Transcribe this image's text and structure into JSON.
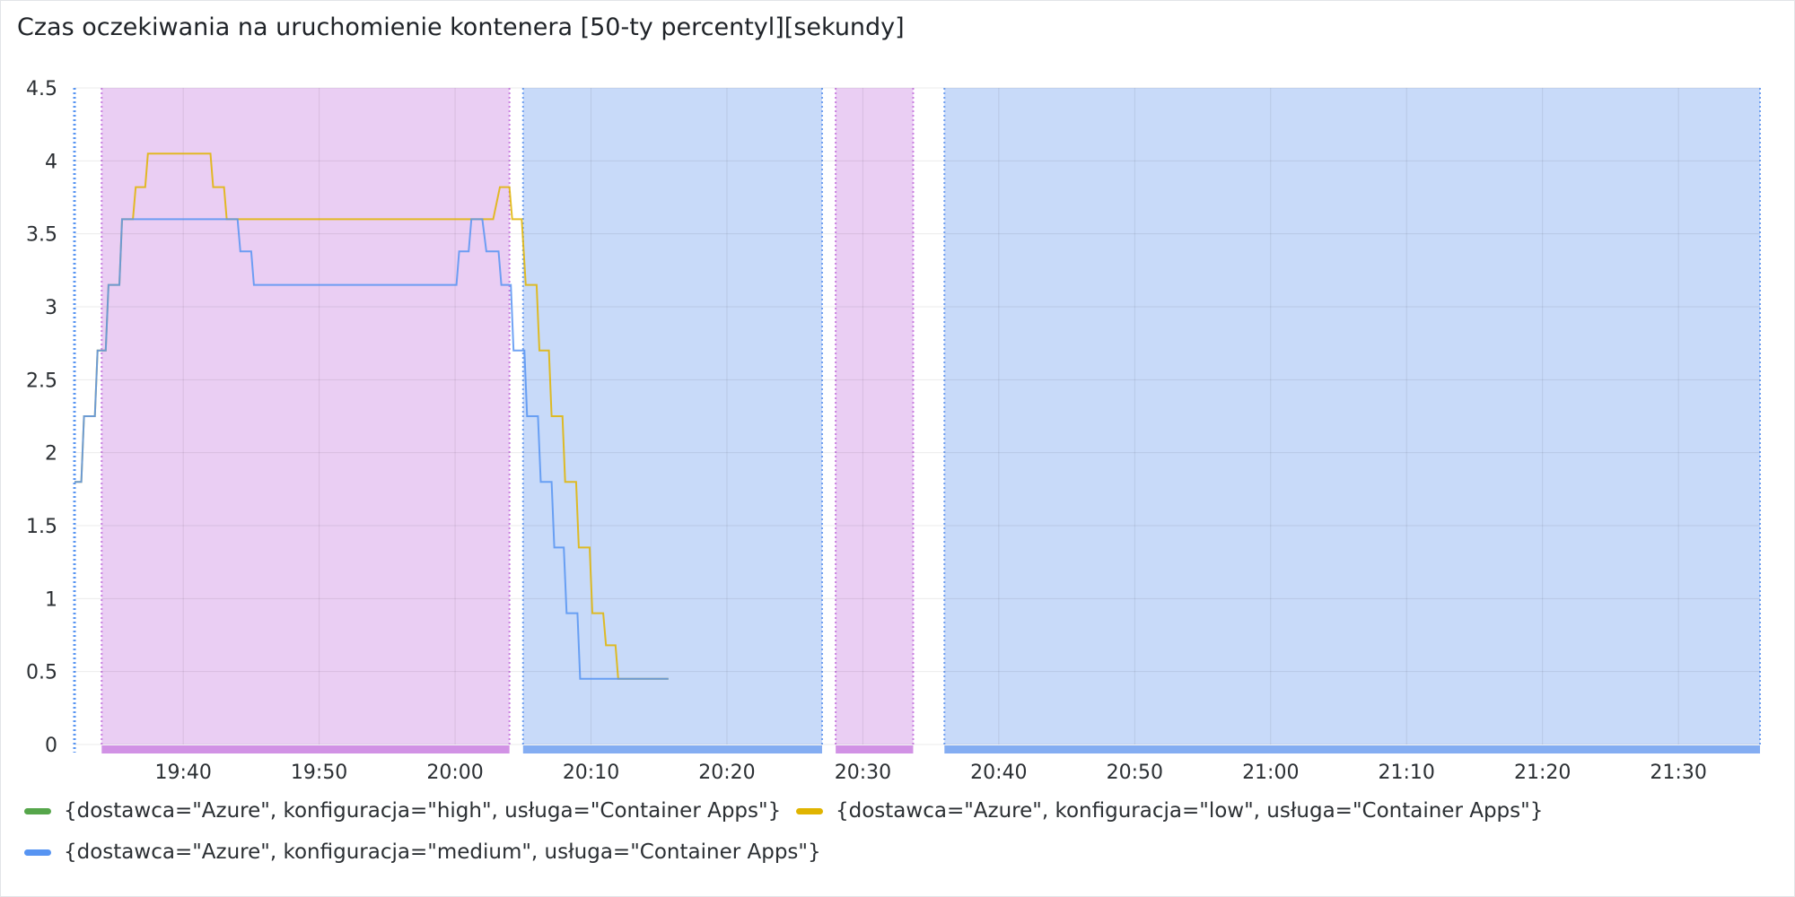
{
  "chart_data": {
    "type": "line",
    "title": "Czas oczekiwania na uruchomienie kontenera [50-ty percentyl][sekundy]",
    "ylim": [
      0,
      4.5
    ],
    "yticks": [
      "0",
      "0.5",
      "1",
      "1.5",
      "2",
      "2.5",
      "3",
      "3.5",
      "4",
      "4.5"
    ],
    "xlim_minutes": [
      1172,
      1296
    ],
    "xticks": [
      {
        "label": "19:40",
        "minute": 1180
      },
      {
        "label": "19:50",
        "minute": 1190
      },
      {
        "label": "20:00",
        "minute": 1200
      },
      {
        "label": "20:10",
        "minute": 1210
      },
      {
        "label": "20:20",
        "minute": 1220
      },
      {
        "label": "20:30",
        "minute": 1230
      },
      {
        "label": "20:40",
        "minute": 1240
      },
      {
        "label": "20:50",
        "minute": 1250
      },
      {
        "label": "21:00",
        "minute": 1260
      },
      {
        "label": "21:10",
        "minute": 1270
      },
      {
        "label": "21:20",
        "minute": 1280
      },
      {
        "label": "21:30",
        "minute": 1290
      }
    ],
    "regions": [
      {
        "start": 1174.0,
        "end": 1204.0,
        "color": "#c97fe0"
      },
      {
        "start": 1205.0,
        "end": 1227.0,
        "color": "#6f9ff0"
      },
      {
        "start": 1228.0,
        "end": 1233.7,
        "color": "#c97fe0"
      },
      {
        "start": 1236.0,
        "end": 1296.0,
        "color": "#6f9ff0"
      }
    ],
    "start_marker": 1172.0,
    "series": [
      {
        "name": "{dostawca=\"Azure\", konfiguracja=\"high\", usługa=\"Container Apps\"}",
        "color": "#56a64b",
        "points": []
      },
      {
        "name": "{dostawca=\"Azure\", konfiguracja=\"low\", usługa=\"Container Apps\"}",
        "color": "#e0b400",
        "points": [
          [
            1172.0,
            1.8
          ],
          [
            1172.5,
            1.8
          ],
          [
            1172.7,
            2.25
          ],
          [
            1173.5,
            2.25
          ],
          [
            1173.7,
            2.7
          ],
          [
            1174.3,
            2.7
          ],
          [
            1174.5,
            3.15
          ],
          [
            1175.3,
            3.15
          ],
          [
            1175.5,
            3.6
          ],
          [
            1176.3,
            3.6
          ],
          [
            1176.5,
            3.82
          ],
          [
            1177.2,
            3.82
          ],
          [
            1177.4,
            4.05
          ],
          [
            1182.0,
            4.05
          ],
          [
            1182.2,
            3.82
          ],
          [
            1183.0,
            3.82
          ],
          [
            1183.2,
            3.6
          ],
          [
            1202.8,
            3.6
          ],
          [
            1203.3,
            3.82
          ],
          [
            1204.0,
            3.82
          ],
          [
            1204.2,
            3.6
          ],
          [
            1204.9,
            3.6
          ],
          [
            1205.2,
            3.15
          ],
          [
            1206.0,
            3.15
          ],
          [
            1206.2,
            2.7
          ],
          [
            1206.9,
            2.7
          ],
          [
            1207.1,
            2.25
          ],
          [
            1207.9,
            2.25
          ],
          [
            1208.1,
            1.8
          ],
          [
            1208.9,
            1.8
          ],
          [
            1209.1,
            1.35
          ],
          [
            1209.9,
            1.35
          ],
          [
            1210.1,
            0.9
          ],
          [
            1210.9,
            0.9
          ],
          [
            1211.1,
            0.68
          ],
          [
            1211.8,
            0.68
          ],
          [
            1212.0,
            0.45
          ],
          [
            1215.7,
            0.45
          ]
        ]
      },
      {
        "name": "{dostawca=\"Azure\", konfiguracja=\"medium\", usługa=\"Container Apps\"}",
        "color": "#5794f2",
        "points": [
          [
            1172.0,
            1.8
          ],
          [
            1172.5,
            1.8
          ],
          [
            1172.7,
            2.25
          ],
          [
            1173.5,
            2.25
          ],
          [
            1173.7,
            2.7
          ],
          [
            1174.3,
            2.7
          ],
          [
            1174.5,
            3.15
          ],
          [
            1175.3,
            3.15
          ],
          [
            1175.5,
            3.6
          ],
          [
            1184.0,
            3.6
          ],
          [
            1184.2,
            3.38
          ],
          [
            1185.0,
            3.38
          ],
          [
            1185.2,
            3.15
          ],
          [
            1200.1,
            3.15
          ],
          [
            1200.3,
            3.38
          ],
          [
            1201.0,
            3.38
          ],
          [
            1201.2,
            3.6
          ],
          [
            1202.0,
            3.6
          ],
          [
            1202.3,
            3.38
          ],
          [
            1203.2,
            3.38
          ],
          [
            1203.4,
            3.15
          ],
          [
            1204.1,
            3.15
          ],
          [
            1204.3,
            2.7
          ],
          [
            1205.1,
            2.7
          ],
          [
            1205.3,
            2.25
          ],
          [
            1206.1,
            2.25
          ],
          [
            1206.3,
            1.8
          ],
          [
            1207.1,
            1.8
          ],
          [
            1207.3,
            1.35
          ],
          [
            1208.0,
            1.35
          ],
          [
            1208.2,
            0.9
          ],
          [
            1209.0,
            0.9
          ],
          [
            1209.2,
            0.45
          ],
          [
            1215.7,
            0.45
          ]
        ]
      }
    ]
  }
}
